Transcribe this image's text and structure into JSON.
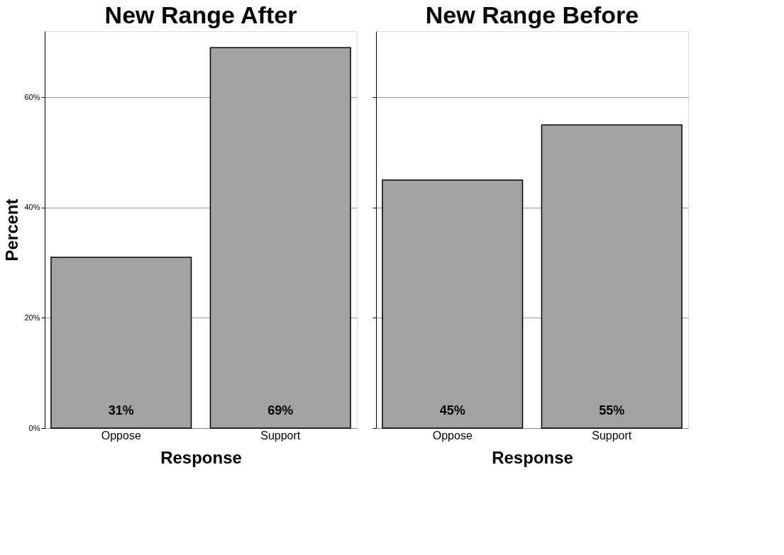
{
  "chart_data": [
    {
      "type": "bar",
      "title": "New Range After",
      "xlabel": "Response",
      "ylabel": "Percent",
      "categories": [
        "Oppose",
        "Support"
      ],
      "values": [
        31,
        69
      ],
      "color": "#a3a3a3",
      "value_labels": [
        "31%",
        "69%"
      ],
      "ylim": [
        0,
        72
      ],
      "yticks": [
        {
          "value": 0,
          "label": "0%"
        },
        {
          "value": 20,
          "label": "20%"
        },
        {
          "value": 40,
          "label": "40%"
        },
        {
          "value": 60,
          "label": "60%"
        }
      ],
      "grid": "y"
    },
    {
      "type": "bar",
      "title": "New Range Before",
      "xlabel": "Response",
      "categories": [
        "Oppose",
        "Support"
      ],
      "values": [
        45,
        55
      ],
      "color": "#a3a3a3",
      "value_labels": [
        "45%",
        "55%"
      ],
      "ylim": [
        0,
        72
      ],
      "yticks": [
        {
          "value": 0,
          "label": null
        },
        {
          "value": 20,
          "label": null
        },
        {
          "value": 40,
          "label": null
        },
        {
          "value": 60,
          "label": null
        }
      ],
      "grid": "y",
      "tick_labels": "x"
    }
  ]
}
